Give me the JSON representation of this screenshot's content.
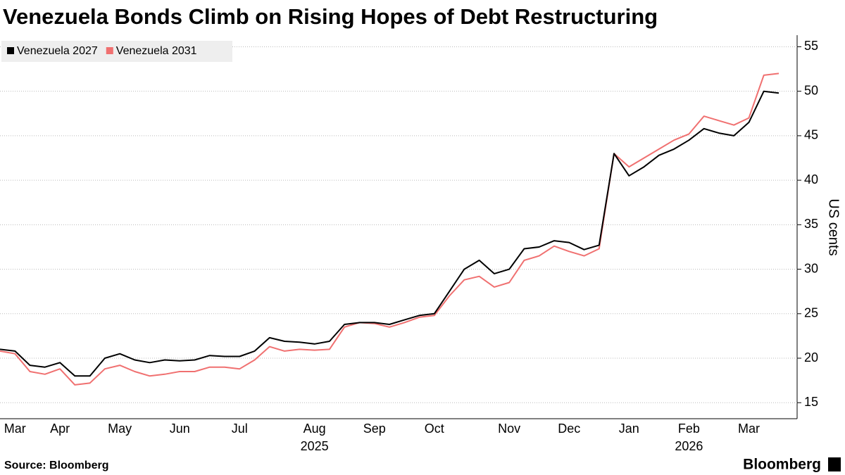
{
  "chart_data": {
    "type": "line",
    "title": "Venezuela Bonds Climb on Rising Hopes of Debt Restructuring",
    "y_axis_label": "US cents",
    "source": "Source: Bloomberg",
    "brand": "Bloomberg",
    "categories": [
      null,
      "Mar",
      null,
      null,
      "Apr",
      null,
      null,
      null,
      "May",
      null,
      null,
      null,
      "Jun",
      null,
      null,
      null,
      "Jul",
      null,
      null,
      null,
      null,
      "Aug",
      null,
      null,
      null,
      "Sep",
      null,
      null,
      null,
      "Oct",
      null,
      null,
      null,
      null,
      "Nov",
      null,
      null,
      null,
      "Dec",
      null,
      null,
      null,
      "Jan",
      null,
      null,
      null,
      "Feb",
      null,
      null,
      null,
      "Mar",
      null,
      null
    ],
    "year_labels": [
      {
        "value": 21,
        "label": "2025"
      },
      {
        "value": 46,
        "label": "2026"
      }
    ],
    "series": [
      {
        "name": "Venezuela 2027",
        "color": "#000000",
        "values": [
          21.0,
          20.8,
          19.2,
          19.0,
          19.5,
          18.0,
          18.0,
          20.0,
          20.5,
          19.8,
          19.5,
          19.8,
          19.7,
          19.8,
          20.3,
          20.2,
          20.2,
          20.8,
          22.3,
          21.9,
          21.8,
          21.6,
          21.9,
          23.8,
          24.0,
          24.0,
          23.8,
          24.3,
          24.8,
          25.0,
          27.5,
          30.0,
          31.0,
          29.5,
          30.0,
          32.3,
          32.5,
          33.2,
          33.0,
          32.2,
          32.7,
          43.0,
          40.5,
          41.5,
          42.8,
          43.5,
          44.5,
          45.8,
          45.3,
          45.0,
          46.5,
          50.0,
          49.8
        ]
      },
      {
        "name": "Venezuela 2031",
        "color": "#f07070",
        "values": [
          20.8,
          20.5,
          18.5,
          18.2,
          18.8,
          17.0,
          17.2,
          18.8,
          19.2,
          18.5,
          18.0,
          18.2,
          18.5,
          18.5,
          19.0,
          19.0,
          18.8,
          19.8,
          21.3,
          20.8,
          21.0,
          20.9,
          21.0,
          23.5,
          24.0,
          23.9,
          23.5,
          24.0,
          24.6,
          24.8,
          27.0,
          28.8,
          29.2,
          28.0,
          28.5,
          31.0,
          31.5,
          32.6,
          32.0,
          31.5,
          32.3,
          43.0,
          41.5,
          42.5,
          43.5,
          44.5,
          45.2,
          47.2,
          46.7,
          46.2,
          47.0,
          51.8,
          52.0
        ]
      }
    ],
    "ylim": [
      13.2,
      56.3
    ],
    "yticks": [
      15,
      20,
      25,
      30,
      35,
      40,
      45,
      50,
      55
    ],
    "grid": true
  }
}
